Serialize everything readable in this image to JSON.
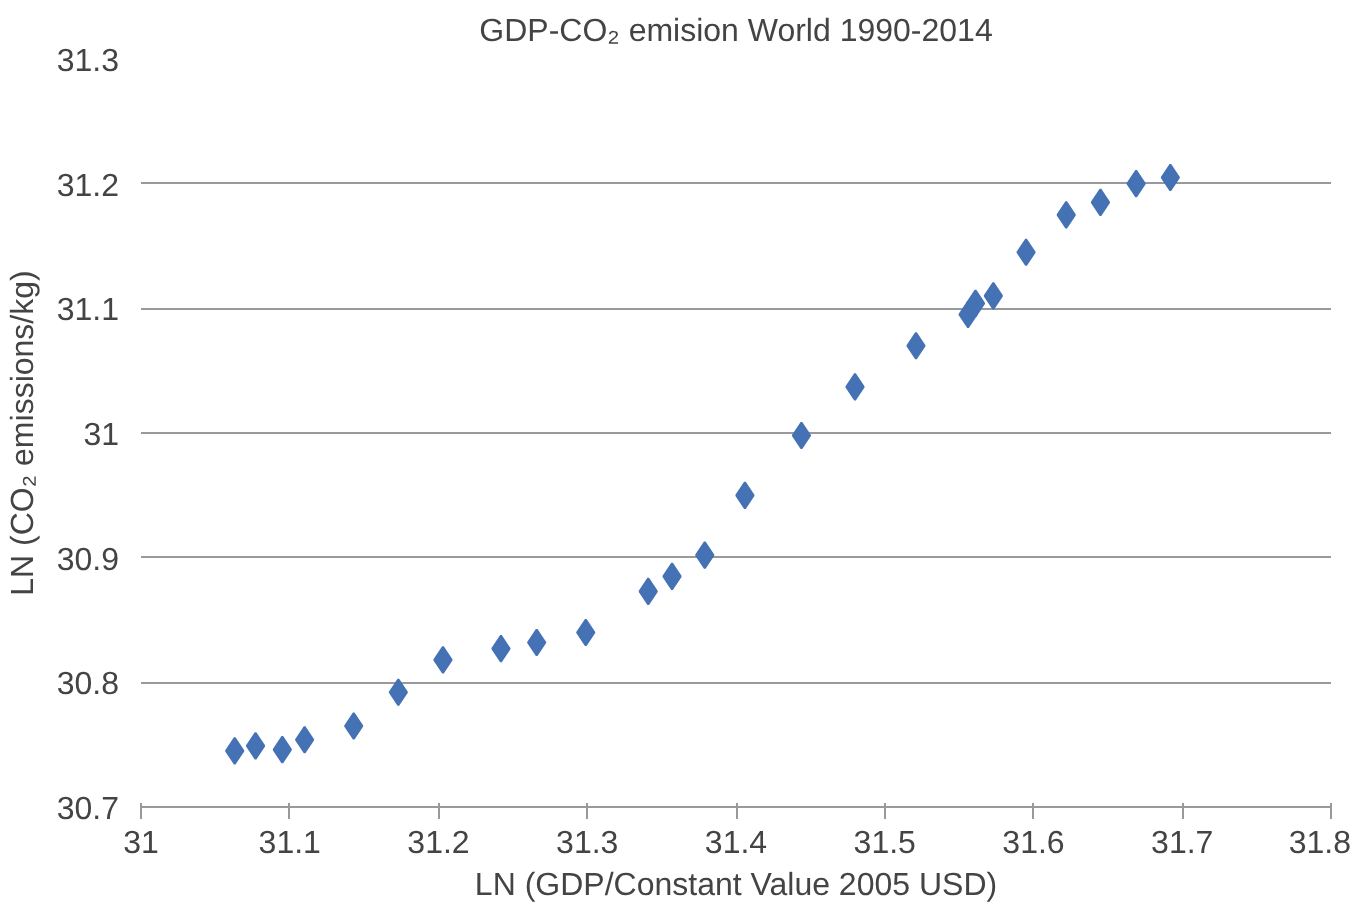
{
  "chart_data": {
    "type": "scatter",
    "title": "GDP-CO₂ emision World 1990-2014",
    "xlabel": "LN (GDP/Constant Value 2005 USD)",
    "ylabel": "LN (CO₂ emissions/kg)",
    "x": [
      31.063,
      31.077,
      31.095,
      31.11,
      31.143,
      31.173,
      31.203,
      31.242,
      31.266,
      31.299,
      31.341,
      31.357,
      31.379,
      31.406,
      31.444,
      31.48,
      31.521,
      31.556,
      31.561,
      31.573,
      31.595,
      31.622,
      31.645,
      31.669,
      31.692
    ],
    "series": [
      {
        "color": "#4472b4",
        "values": [
          30.745,
          30.749,
          30.746,
          30.754,
          30.765,
          30.792,
          30.818,
          30.827,
          30.832,
          30.84,
          30.873,
          30.885,
          30.902,
          30.95,
          30.998,
          31.037,
          31.07,
          31.095,
          31.104,
          31.11,
          31.145,
          31.175,
          31.185,
          31.2,
          31.205
        ]
      }
    ],
    "xlim": [
      31,
      31.8
    ],
    "xticks": [
      31,
      31.1,
      31.2,
      31.3,
      31.4,
      31.5,
      31.6,
      31.7,
      31.8
    ],
    "ylim": [
      30.7,
      31.3
    ],
    "yticks": [
      30.7,
      30.8,
      30.9,
      31,
      31.1,
      31.2,
      31.3
    ],
    "grid": "y",
    "marker": "diamond"
  }
}
